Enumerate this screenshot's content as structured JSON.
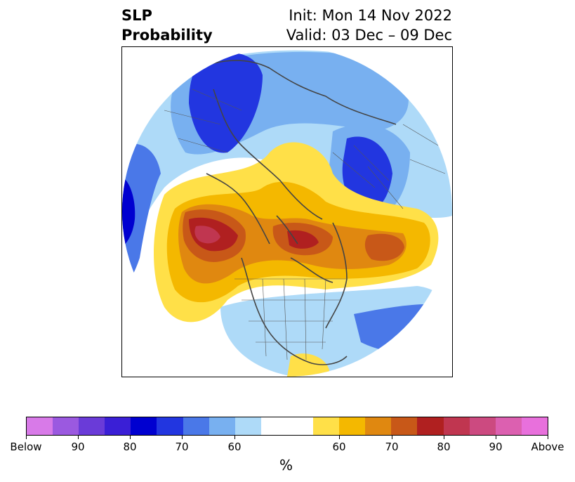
{
  "title": {
    "left_line1": "SLP",
    "left_line2": "Probability",
    "right_line1": "Init: Mon 14 Nov 2022",
    "right_line2": "Valid: 03 Dec – 09 Dec"
  },
  "colorbar": {
    "unit": "%",
    "colors": [
      "#d87ae8",
      "#9b59e0",
      "#6a3bd8",
      "#3a1fd6",
      "#0000d0",
      "#2236e0",
      "#4a78e8",
      "#78b0f0",
      "#aedaf8",
      "#ffffff",
      "#ffffff",
      "#ffe048",
      "#f4b800",
      "#e08810",
      "#c85818",
      "#b02020",
      "#c03650",
      "#cc4a80",
      "#dc60b0",
      "#e870dc"
    ],
    "ticks": [
      "Below",
      "90",
      "80",
      "70",
      "60",
      "60",
      "70",
      "80",
      "90",
      "Above"
    ]
  },
  "map": {
    "projection": "north-polar-stereographic",
    "variable": "SLP probability",
    "below_normal_color": "#0000d0",
    "above_normal_color": "#b02020"
  }
}
